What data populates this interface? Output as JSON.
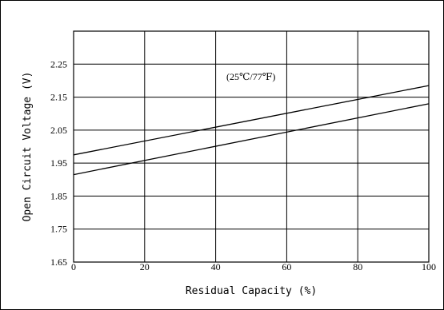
{
  "chart_data": {
    "type": "line",
    "title": "",
    "xlabel": "Residual Capacity (%)",
    "ylabel": "Open Circuit Voltage (V)",
    "xlim": [
      0,
      100
    ],
    "ylim": [
      1.65,
      2.35
    ],
    "x_ticks": [
      "0",
      "20",
      "40",
      "60",
      "80",
      "100"
    ],
    "y_ticks": [
      "1.65",
      "1.75",
      "1.85",
      "1.95",
      "2.05",
      "2.15",
      "2.25"
    ],
    "grid": true,
    "legend": "none",
    "annotation": "(25℃/77℉)",
    "series": [
      {
        "x": [
          0,
          100
        ],
        "y": [
          1.975,
          2.185
        ]
      },
      {
        "x": [
          0,
          100
        ],
        "y": [
          1.915,
          2.13
        ]
      }
    ],
    "colors": {
      "line": "#000000",
      "grid": "#000000"
    }
  }
}
